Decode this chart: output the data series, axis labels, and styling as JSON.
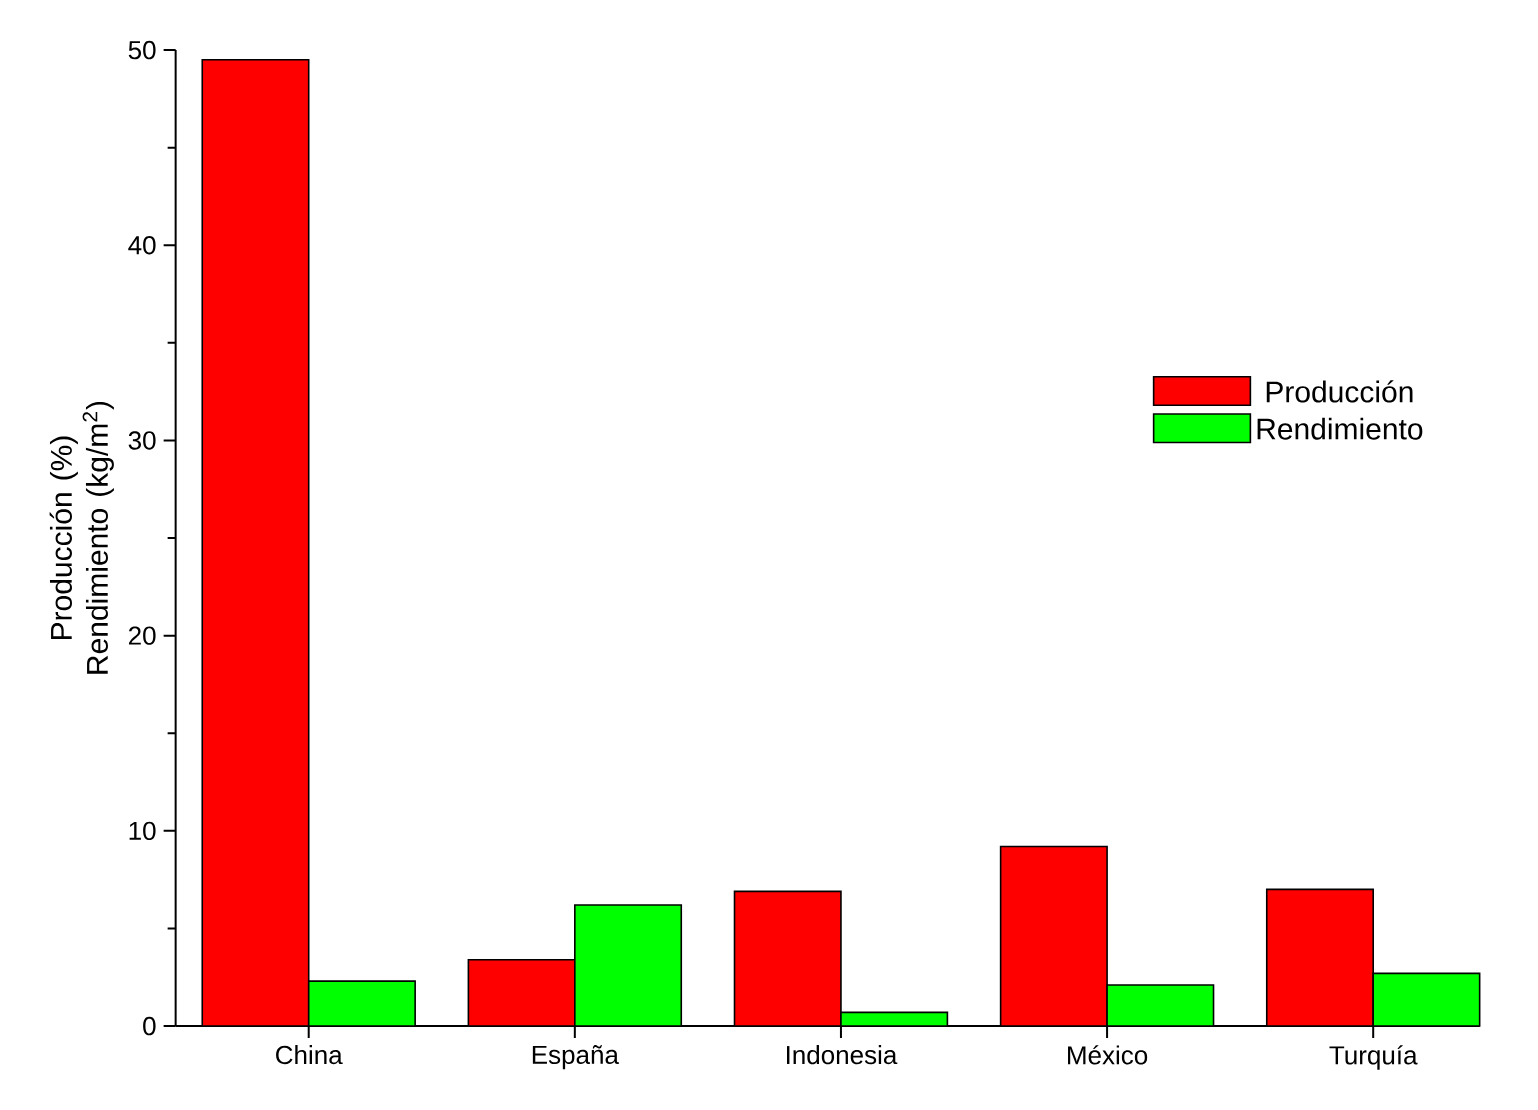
{
  "chart_data": {
    "type": "bar",
    "ylabel": "Producción (%) Rendimiento (kg/m$^{2}$)",
    "categories": [
      "China",
      "España",
      "Indonesia",
      "México",
      "Turquía"
    ],
    "series": [
      {
        "name": "Producción",
        "color": "#ff0000",
        "values": [
          49.5,
          3.4,
          6.9,
          9.2,
          7.0
        ]
      },
      {
        "name": "Rendimiento",
        "color": "#00ff00",
        "values": [
          2.3,
          6.2,
          0.7,
          2.1,
          2.7
        ]
      }
    ],
    "ylim": [
      0,
      50
    ],
    "yticks": [
      0,
      10,
      20,
      30,
      40,
      50
    ],
    "legend": "right",
    "grid": false
  }
}
